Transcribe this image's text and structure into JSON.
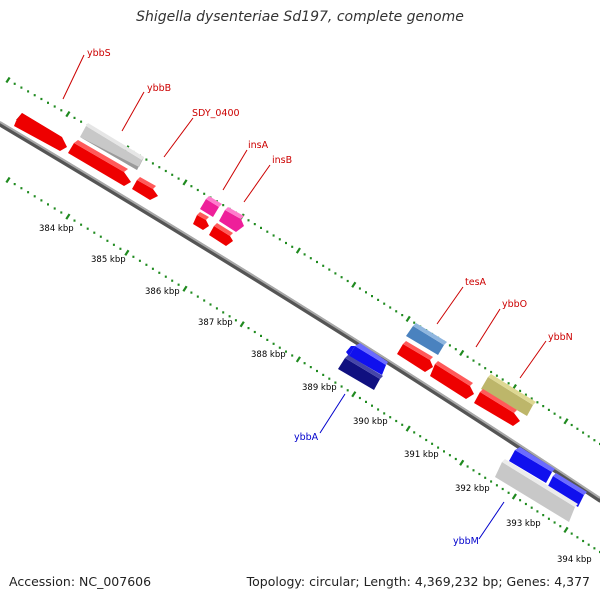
{
  "title": "Shigella dysenteriae Sd197, complete genome",
  "accession": "Accession: NC_007606",
  "topology": "Topology: circular; Length: 4,369,232 bp; Genes: 4,377",
  "colors": {
    "backbone": "#8c8c8c",
    "tick": "#1f8a1f",
    "label_forward": "#cc0000",
    "label_reverse": "#0000cc",
    "kbp_label": "#000000"
  },
  "scale_ticks": [
    "384 kbp",
    "385 kbp",
    "386 kbp",
    "387 kbp",
    "388 kbp",
    "389 kbp",
    "390 kbp",
    "391 kbp",
    "392 kbp",
    "393 kbp",
    "394 kbp"
  ],
  "gene_labels": [
    {
      "name": "ybbS",
      "strand": "forward"
    },
    {
      "name": "ybbB",
      "strand": "forward"
    },
    {
      "name": "SDY_0400",
      "strand": "forward"
    },
    {
      "name": "insA",
      "strand": "forward"
    },
    {
      "name": "insB",
      "strand": "forward"
    },
    {
      "name": "tesA",
      "strand": "forward"
    },
    {
      "name": "ybbO",
      "strand": "forward"
    },
    {
      "name": "ybbN",
      "strand": "forward"
    },
    {
      "name": "ybbA",
      "strand": "reverse"
    },
    {
      "name": "ybbM",
      "strand": "reverse"
    }
  ],
  "features": [
    {
      "name": "ybbS-block",
      "color": "#ee0000"
    },
    {
      "name": "ybbB-block",
      "color": "#c0c0c0"
    },
    {
      "name": "red-long-block",
      "color": "#ee0000"
    },
    {
      "name": "red-short-block",
      "color": "#ee0000"
    },
    {
      "name": "insA-block",
      "color": "#ee1f9a"
    },
    {
      "name": "insB-block",
      "color": "#ee1f9a"
    },
    {
      "name": "red-small-1",
      "color": "#ee0000"
    },
    {
      "name": "red-small-2",
      "color": "#ee0000"
    },
    {
      "name": "ybbA-light-block",
      "color": "#1010ee"
    },
    {
      "name": "ybbA-dark-block",
      "color": "#101080"
    },
    {
      "name": "tesA-block",
      "color": "#4a82bf"
    },
    {
      "name": "red-mid-1",
      "color": "#ee0000"
    },
    {
      "name": "red-mid-2",
      "color": "#ee0000"
    },
    {
      "name": "ybbO-block",
      "color": "#bdb66a"
    },
    {
      "name": "red-mid-3",
      "color": "#ee0000"
    },
    {
      "name": "ybbM-blue-1",
      "color": "#1010ee"
    },
    {
      "name": "ybbM-blue-2",
      "color": "#1010ee"
    },
    {
      "name": "ybbM-grey",
      "color": "#c8c8c8"
    }
  ]
}
